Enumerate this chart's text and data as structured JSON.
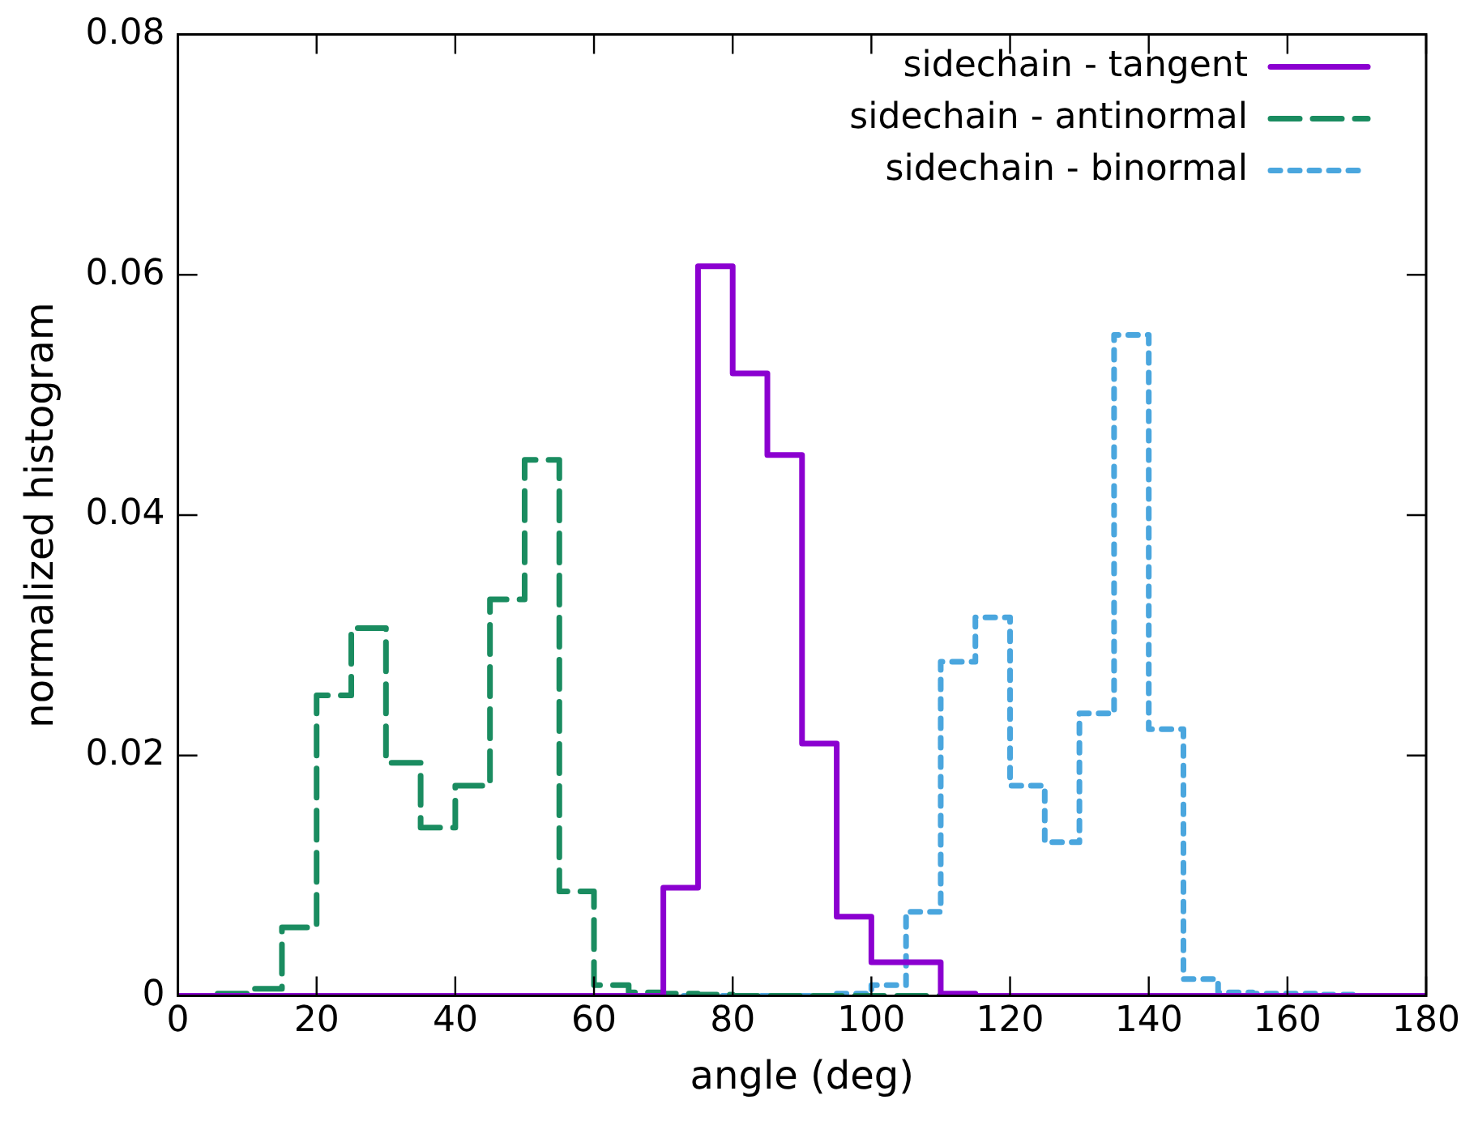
{
  "chart_data": {
    "type": "histogram",
    "xlabel": "angle (deg)",
    "ylabel": "normalized histogram",
    "bins": [
      0,
      5,
      10,
      15,
      20,
      25,
      30,
      35,
      40,
      45,
      50,
      55,
      60,
      65,
      70,
      75,
      80,
      85,
      90,
      95,
      100,
      105,
      110,
      115,
      120,
      125,
      130,
      135,
      140,
      145,
      150,
      155,
      160,
      165,
      170,
      175,
      180
    ],
    "series": [
      {
        "name": "sidechain - tangent",
        "color": "#8b00d0",
        "line_style": "solid",
        "values": [
          0,
          0,
          0,
          0,
          0,
          0,
          0,
          0,
          0,
          0,
          0,
          0,
          0,
          0,
          0.009,
          0.0607,
          0.0518,
          0.045,
          0.021,
          0.0066,
          0.0028,
          0.0028,
          0.0002,
          0,
          0,
          0,
          0,
          0,
          0,
          0,
          0,
          0,
          0,
          0,
          0,
          0
        ]
      },
      {
        "name": "sidechain - antinormal",
        "color": "#1a8c60",
        "line_style": "dashed",
        "values": [
          0,
          0.0002,
          0.0006,
          0.0057,
          0.025,
          0.0306,
          0.0194,
          0.014,
          0.0175,
          0.033,
          0.0446,
          0.0087,
          0.0009,
          0.0003,
          0.0002,
          0.0001,
          0,
          0,
          0,
          0,
          0,
          0,
          0,
          0,
          0,
          0,
          0,
          0,
          0,
          0,
          0,
          0,
          0,
          0,
          0,
          0
        ]
      },
      {
        "name": "sidechain - binormal",
        "color": "#4aa6de",
        "line_style": "dotted",
        "values": [
          0,
          0,
          0,
          0,
          0,
          0,
          0,
          0,
          0,
          0,
          0,
          0,
          0,
          0,
          0,
          0,
          0,
          0,
          0,
          0.0002,
          0.0009,
          0.007,
          0.0278,
          0.0315,
          0.0175,
          0.0128,
          0.0235,
          0.055,
          0.0222,
          0.0014,
          0.0003,
          0.0002,
          0.0002,
          0.0001,
          0,
          0
        ]
      }
    ],
    "xlim": [
      0,
      180
    ],
    "xticks": [
      0,
      20,
      40,
      60,
      80,
      100,
      120,
      140,
      160,
      180
    ],
    "ylim": [
      0,
      0.08
    ],
    "yticks": [
      0,
      0.02,
      0.04,
      0.06,
      0.08
    ],
    "grid": false,
    "legend": "top right"
  }
}
